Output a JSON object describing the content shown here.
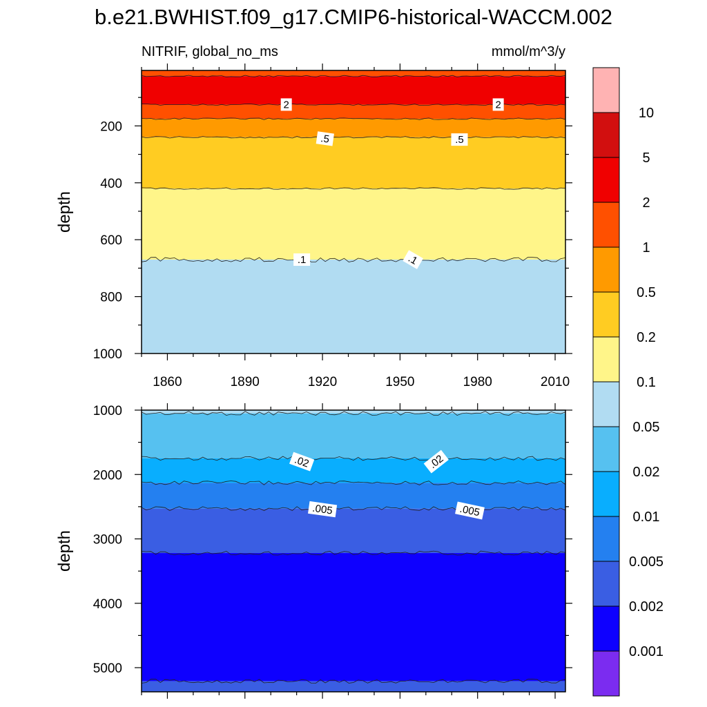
{
  "title": "b.e21.BWHIST.f09_g17.CMIP6-historical-WACCM.002",
  "subtitle_left": "NITRIF, global_no_ms",
  "subtitle_right": "mmol/m^3/y",
  "chart_data": [
    {
      "type": "contour",
      "panel": "upper",
      "variable": "NITRIF, global_no_ms",
      "units": "mmol/m^3/y",
      "xlabel": "",
      "ylabel": "depth",
      "xlim": [
        1850,
        2014
      ],
      "ylim": [
        1000,
        5
      ],
      "y_reversed": true,
      "x_ticks": [
        1860,
        1890,
        1920,
        1950,
        1980,
        2010
      ],
      "x_tick_labels": [
        "1860",
        "1890",
        "1920",
        "1950",
        "1980",
        "2010"
      ],
      "y_ticks": [
        200,
        400,
        600,
        800,
        1000
      ],
      "y_tick_labels": [
        "200",
        "400",
        "600",
        "800",
        "1000"
      ],
      "bands": [
        {
          "top": 5,
          "bottom": 25,
          "color": "#ff5000"
        },
        {
          "top": 25,
          "bottom": 125,
          "color": "#f00000"
        },
        {
          "top": 125,
          "bottom": 175,
          "color": "#ff5000"
        },
        {
          "top": 175,
          "bottom": 240,
          "color": "#ff9a00"
        },
        {
          "top": 240,
          "bottom": 420,
          "color": "#ffcc22"
        },
        {
          "top": 420,
          "bottom": 670,
          "color": "#fff589"
        },
        {
          "top": 670,
          "bottom": 1000,
          "color": "#b1dcf2"
        }
      ],
      "contour_depths": [
        25,
        125,
        175,
        240,
        420,
        670
      ],
      "contour_labels": [
        {
          "text": "2",
          "year": 1906,
          "depth": 125,
          "angle": 0
        },
        {
          "text": "2",
          "year": 1988,
          "depth": 125,
          "angle": 0
        },
        {
          "text": ".5",
          "year": 1921,
          "depth": 245,
          "angle": 8
        },
        {
          "text": ".5",
          "year": 1973,
          "depth": 248,
          "angle": 0
        },
        {
          "text": ".1",
          "year": 1912,
          "depth": 670,
          "angle": 0
        },
        {
          "text": ".1",
          "year": 1955,
          "depth": 670,
          "angle": 30
        }
      ]
    },
    {
      "type": "contour",
      "panel": "lower",
      "variable": "NITRIF, global_no_ms",
      "units": "mmol/m^3/y",
      "xlabel": "",
      "ylabel": "depth",
      "xlim": [
        1850,
        2014
      ],
      "ylim": [
        5375,
        1000
      ],
      "y_reversed": true,
      "x_ticks": [
        1860,
        1890,
        1920,
        1950,
        1980,
        2010
      ],
      "x_tick_labels": [],
      "y_ticks": [
        1000,
        2000,
        3000,
        4000,
        5000
      ],
      "y_tick_labels": [
        "1000",
        "2000",
        "3000",
        "4000",
        "5000"
      ],
      "bands": [
        {
          "top": 1000,
          "bottom": 1050,
          "color": "#b1dcf2"
        },
        {
          "top": 1050,
          "bottom": 1750,
          "color": "#56c1f0"
        },
        {
          "top": 1750,
          "bottom": 2130,
          "color": "#09aefe"
        },
        {
          "top": 2130,
          "bottom": 2530,
          "color": "#2480f0"
        },
        {
          "top": 2530,
          "bottom": 3220,
          "color": "#3a5ee3"
        },
        {
          "top": 3220,
          "bottom": 5210,
          "color": "#0e00ff"
        },
        {
          "top": 5210,
          "bottom": 5375,
          "color": "#3a5ee3"
        }
      ],
      "contour_depths": [
        1050,
        1750,
        2130,
        2530,
        3220,
        5210
      ],
      "contour_labels": [
        {
          "text": ".02",
          "year": 1912,
          "depth": 1800,
          "angle": 20
        },
        {
          "text": ".02",
          "year": 1964,
          "depth": 1800,
          "angle": -38
        },
        {
          "text": ".005",
          "year": 1920,
          "depth": 2540,
          "angle": 8
        },
        {
          "text": ".005",
          "year": 1977,
          "depth": 2560,
          "angle": 12
        }
      ]
    }
  ],
  "colorbar": {
    "labels": [
      "10",
      "5",
      "2",
      "1",
      "0.5",
      "0.2",
      "0.1",
      "0.05",
      "0.02",
      "0.01",
      "0.005",
      "0.002",
      "0.001"
    ],
    "colors": [
      "#ffb3b3",
      "#d20f0f",
      "#f00000",
      "#ff5000",
      "#ff9a00",
      "#ffcc22",
      "#fff589",
      "#b1dcf2",
      "#56c1f0",
      "#09aefe",
      "#2480f0",
      "#3a5ee3",
      "#0e00ff",
      "#7b2cf0"
    ]
  }
}
